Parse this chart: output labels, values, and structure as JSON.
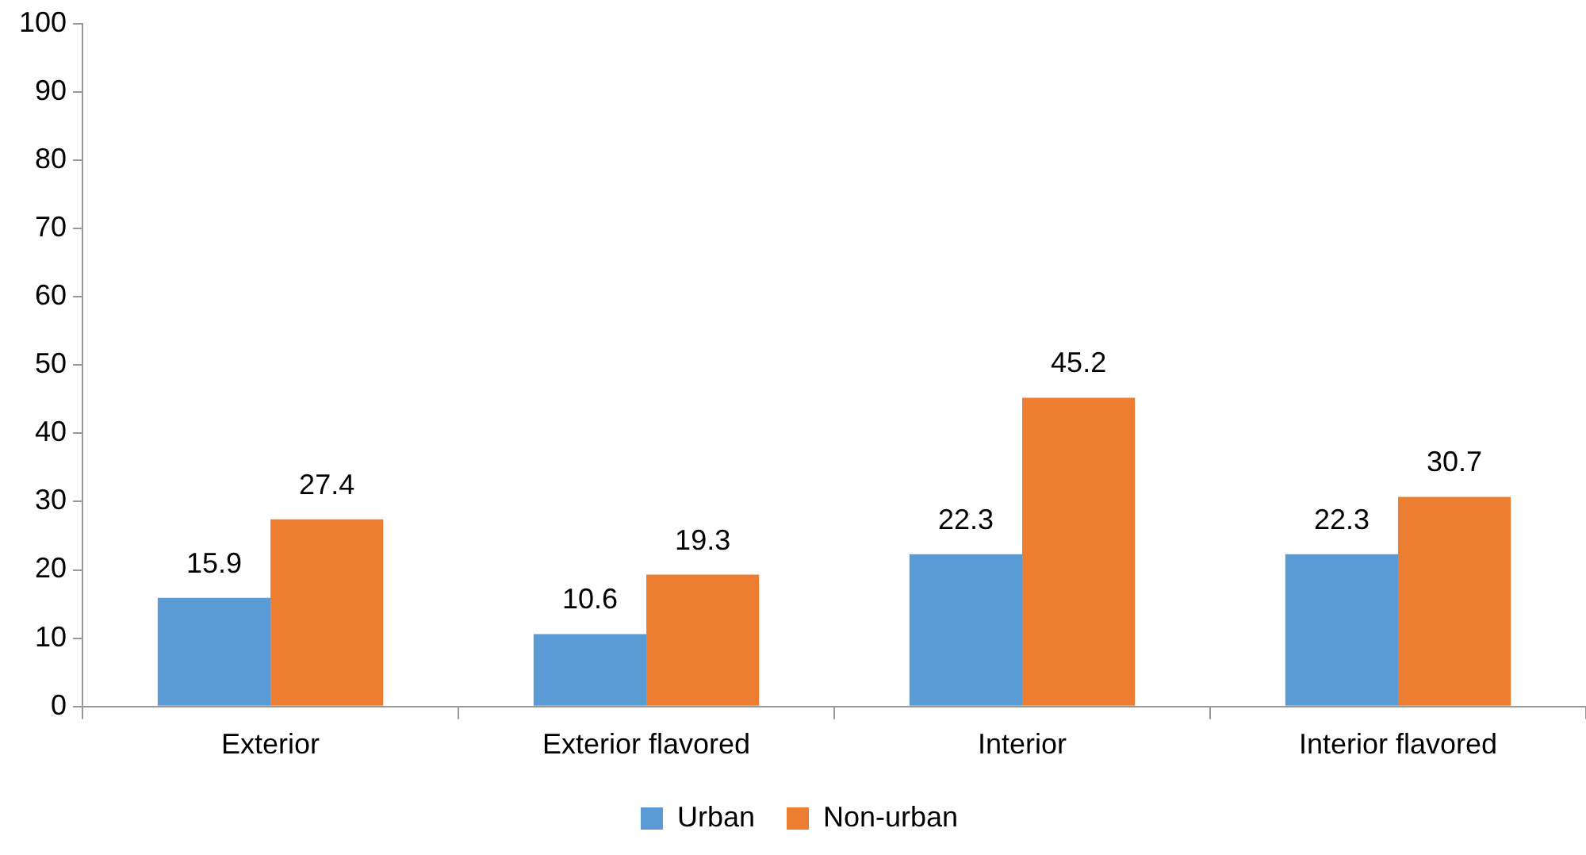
{
  "chart_data": {
    "type": "bar",
    "categories": [
      "Exterior",
      "Exterior flavored",
      "Interior",
      "Interior flavored"
    ],
    "series": [
      {
        "name": "Urban",
        "color": "#5b9bd5",
        "values": [
          15.9,
          10.6,
          22.3,
          22.3
        ]
      },
      {
        "name": "Non-urban",
        "color": "#ed7d31",
        "values": [
          27.4,
          19.3,
          45.2,
          30.7
        ]
      }
    ],
    "ylim": [
      0,
      100
    ],
    "yticks": [
      0,
      10,
      20,
      30,
      40,
      50,
      60,
      70,
      80,
      90,
      100
    ],
    "grid": false,
    "legend": "bottom",
    "data_labels": true
  }
}
